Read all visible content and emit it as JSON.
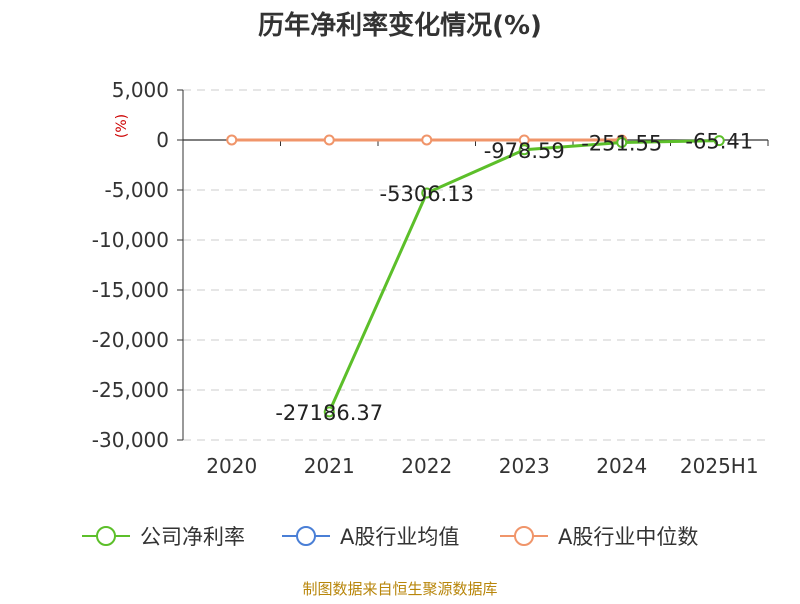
{
  "chart_data": {
    "type": "line",
    "title": "历年净利率变化情况(%)",
    "ylabel": "(%)",
    "categories": [
      "2020",
      "2021",
      "2022",
      "2023",
      "2024",
      "2025H1"
    ],
    "ylim": [
      -30000,
      5000
    ],
    "yticks": [
      5000,
      0,
      -5000,
      -10000,
      -15000,
      -20000,
      -25000,
      -30000
    ],
    "ytick_labels": [
      "5,000",
      "0",
      "-5,000",
      "-10,000",
      "-15,000",
      "-20,000",
      "-25,000",
      "-30,000"
    ],
    "grid": true,
    "legend_position": "bottom",
    "series": [
      {
        "name": "公司净利率",
        "color": "#5cbf2a",
        "values": [
          null,
          -27186.37,
          -5306.13,
          -978.59,
          -251.55,
          -65.41
        ],
        "labels": [
          "",
          "-27186.37",
          "-5306.13",
          "-978.59",
          "-251.55",
          "-65.41"
        ]
      },
      {
        "name": "A股行业均值",
        "color": "#4a7fd6",
        "values": [
          null,
          null,
          null,
          null,
          null,
          null
        ]
      },
      {
        "name": "A股行业中位数",
        "color": "#f0956a",
        "values": [
          5,
          4,
          6,
          3,
          2,
          null
        ]
      }
    ],
    "source": "制图数据来自恒生聚源数据库"
  }
}
